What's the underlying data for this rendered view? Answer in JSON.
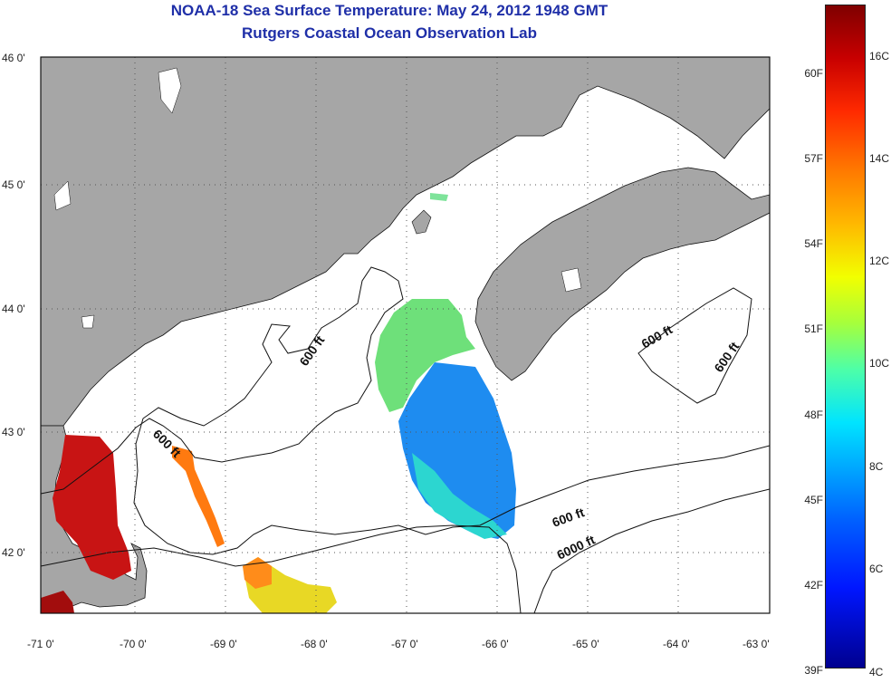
{
  "title": {
    "line1": "NOAA-18 Sea Surface Temperature:  May 24, 2012 1948 GMT",
    "line2": "Rutgers Coastal Ocean Observation Lab"
  },
  "map": {
    "lat_labels": [
      "46 0'",
      "45 0'",
      "44 0'",
      "43 0'",
      "42 0'"
    ],
    "lon_labels": [
      "-71 0'",
      "-70 0'",
      "-69 0'",
      "-68 0'",
      "-67 0'",
      "-66 0'",
      "-65 0'",
      "-64 0'",
      "-63 0'"
    ],
    "contour_labels": [
      "600 ft",
      "600 ft",
      "600 ft",
      "600 ft",
      "600 ft",
      "6000 ft"
    ],
    "colors": {
      "land": "#a6a6a6",
      "ocean": "#ffffff",
      "grid": "#555555"
    }
  },
  "colorbar": {
    "fahrenheit": [
      "60F",
      "57F",
      "54F",
      "51F",
      "48F",
      "45F",
      "42F",
      "39F"
    ],
    "celsius": [
      "16C",
      "14C",
      "12C",
      "10C",
      "8C",
      "6C",
      "4C"
    ]
  }
}
